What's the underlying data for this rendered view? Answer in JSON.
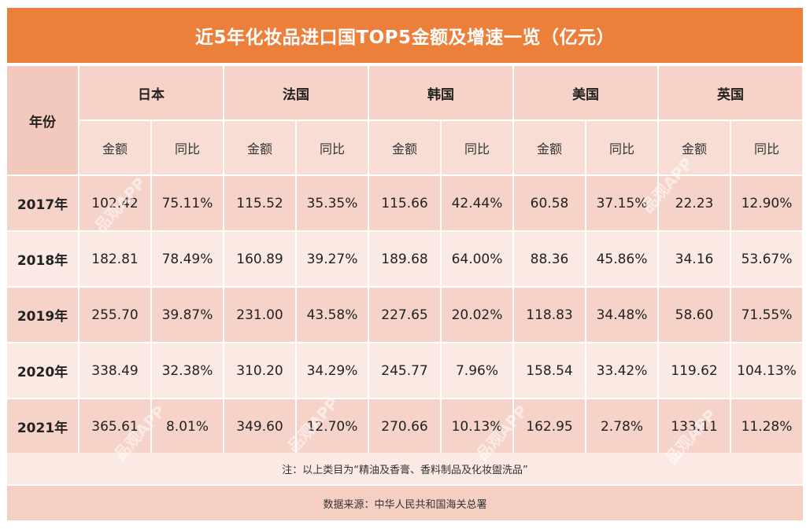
{
  "title": "近5年化妆品进口国TOP5金额及增速一览（亿元）",
  "header": {
    "year_label": "年份",
    "countries": [
      "日本",
      "法国",
      "韩国",
      "美国",
      "英国"
    ],
    "sub_amount": "金额",
    "sub_growth": "同比"
  },
  "rows": [
    {
      "year": "2017年",
      "cells": [
        "102.42",
        "75.11%",
        "115.52",
        "35.35%",
        "115.66",
        "42.44%",
        "60.58",
        "37.15%",
        "22.23",
        "12.90%"
      ]
    },
    {
      "year": "2018年",
      "cells": [
        "182.81",
        "78.49%",
        "160.89",
        "39.27%",
        "189.68",
        "64.00%",
        "88.36",
        "45.86%",
        "34.16",
        "53.67%"
      ]
    },
    {
      "year": "2019年",
      "cells": [
        "255.70",
        "39.87%",
        "231.00",
        "43.58%",
        "227.65",
        "20.02%",
        "118.83",
        "34.48%",
        "58.60",
        "71.55%"
      ]
    },
    {
      "year": "2020年",
      "cells": [
        "338.49",
        "32.38%",
        "310.20",
        "34.29%",
        "245.77",
        "7.96%",
        "158.54",
        "33.42%",
        "119.62",
        "104.13%"
      ]
    },
    {
      "year": "2021年",
      "cells": [
        "365.61",
        "8.01%",
        "349.60",
        "12.70%",
        "270.66",
        "10.13%",
        "162.95",
        "2.78%",
        "133.11",
        "11.28%"
      ]
    }
  ],
  "note": "注：以上类目为“精油及香膏、香料制品及化妆盥洗品”",
  "source": "数据来源：中华人民共和国海关总署",
  "watermark": "品观APP",
  "colors": {
    "title_bg": "#ec7f3a",
    "header_bg": "#f6d2c8",
    "row_dark": "#f6d3c9",
    "row_light": "#fbeae4"
  }
}
